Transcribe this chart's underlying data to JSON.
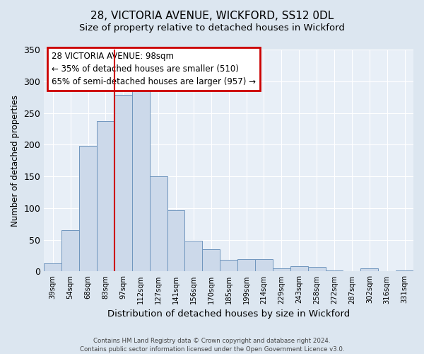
{
  "title": "28, VICTORIA AVENUE, WICKFORD, SS12 0DL",
  "subtitle": "Size of property relative to detached houses in Wickford",
  "xlabel": "Distribution of detached houses by size in Wickford",
  "ylabel": "Number of detached properties",
  "bar_labels": [
    "39sqm",
    "54sqm",
    "68sqm",
    "83sqm",
    "97sqm",
    "112sqm",
    "127sqm",
    "141sqm",
    "156sqm",
    "170sqm",
    "185sqm",
    "199sqm",
    "214sqm",
    "229sqm",
    "243sqm",
    "258sqm",
    "272sqm",
    "287sqm",
    "302sqm",
    "316sqm",
    "331sqm"
  ],
  "bar_values": [
    13,
    65,
    198,
    237,
    278,
    288,
    150,
    96,
    49,
    35,
    18,
    20,
    19,
    5,
    8,
    7,
    2,
    0,
    5,
    1,
    2
  ],
  "bar_color": "#ccd9ea",
  "bar_edge_color": "#7096be",
  "ylim": [
    0,
    350
  ],
  "property_label": "28 VICTORIA AVENUE: 98sqm",
  "annotation_line1": "← 35% of detached houses are smaller (510)",
  "annotation_line2": "65% of semi-detached houses are larger (957) →",
  "vline_color": "#cc0000",
  "vline_bin_index": 4,
  "box_color": "#cc0000",
  "footer1": "Contains HM Land Registry data © Crown copyright and database right 2024.",
  "footer2": "Contains public sector information licensed under the Open Government Licence v3.0.",
  "bg_color": "#dce6f0",
  "plot_bg_color": "#e8eff7"
}
